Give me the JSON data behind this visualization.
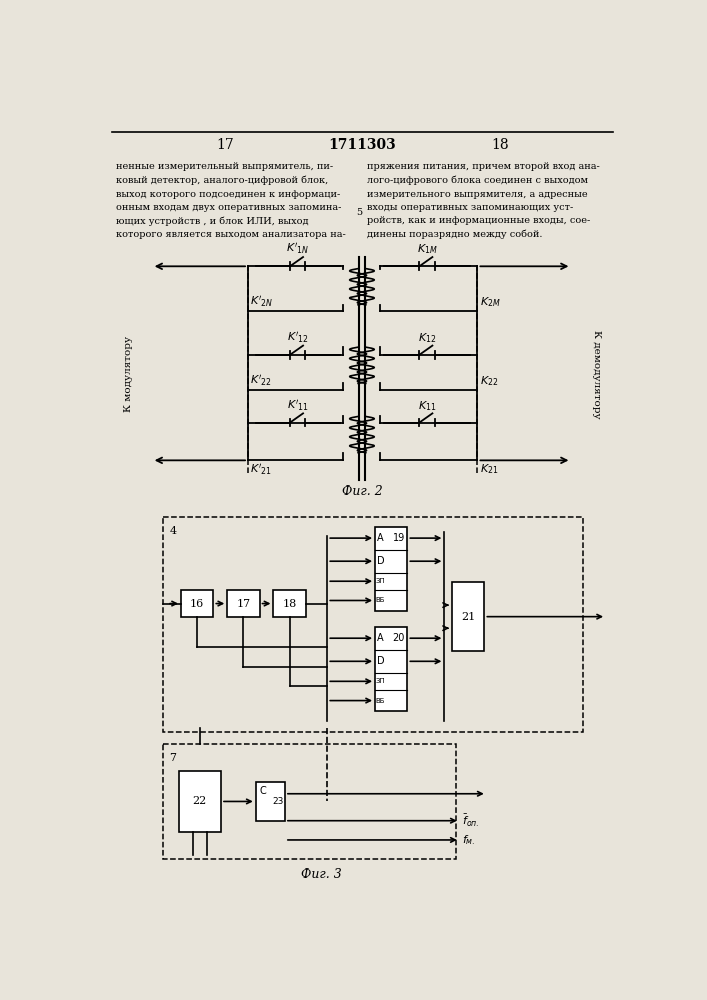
{
  "page_numbers": [
    "17",
    "1711303",
    "18"
  ],
  "text_left": "ненные измерительный выпрямитель, пи-\nковый детектор, аналого-цифровой блок,\nвыход которого подсоединен к информаци-\nонным входам двух оперативных запомина-\nющих устройств , и блок ИЛИ, выход\nкоторого является выходом анализатора на-",
  "text_right": "пряжения питания, причем второй вход ана-\nлого-цифрового блока соединен с выходом\nизмерительного выпрямителя, а адресные\nвходы оперативных запоминающих уст-\nройств, как и информационные входы, сое-\nдинены поразрядно между собой.",
  "fig2_caption": "Фиг. 2",
  "fig3_caption": "Фиг. 3",
  "bg_color": "#e8e4da"
}
